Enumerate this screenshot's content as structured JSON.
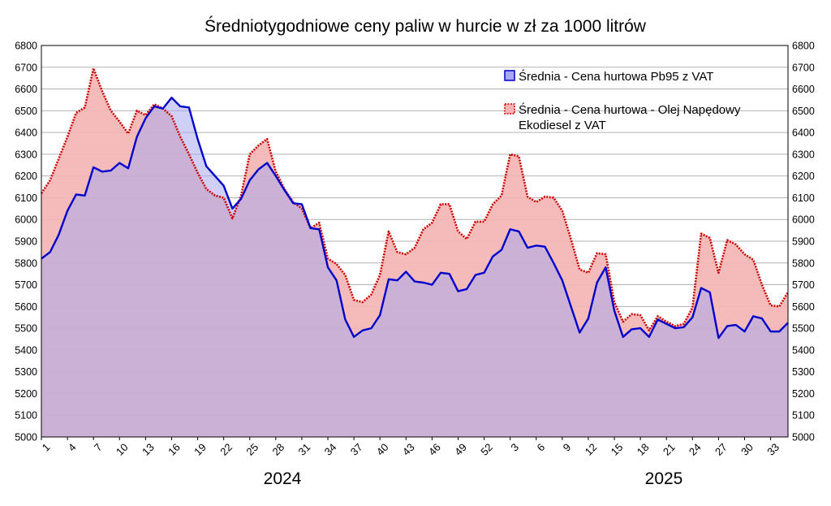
{
  "chart_data": {
    "type": "area",
    "title": "Średniotygodniowe ceny paliw w hurcie w zł za 1000 litrów",
    "ylim": [
      5000,
      6800
    ],
    "y_ticks": [
      5000,
      5100,
      5200,
      5300,
      5400,
      5500,
      5600,
      5700,
      5800,
      5900,
      6000,
      6100,
      6200,
      6300,
      6400,
      6500,
      6600,
      6700,
      6800
    ],
    "x_ticks": [
      "1",
      "4",
      "7",
      "10",
      "13",
      "16",
      "19",
      "22",
      "25",
      "28",
      "31",
      "34",
      "37",
      "40",
      "43",
      "46",
      "49",
      "52",
      "3",
      "6",
      "9",
      "12",
      "15",
      "18",
      "21",
      "24",
      "27",
      "30",
      "33"
    ],
    "year_labels": [
      "2024",
      "2025"
    ],
    "grid": true,
    "legend_position": "top-right",
    "legend": [
      {
        "name_line1": "Średnia - Cena hurtowa Pb95 z VAT",
        "name_line2": ""
      },
      {
        "name_line1": "Średnia - Cena hurtowa - Olej Napędowy",
        "name_line2": "Ekodiesel z VAT"
      }
    ],
    "series": [
      {
        "name": "Średnia - Cena hurtowa Pb95 z VAT",
        "color": "#0000cc",
        "fill": "#aaa9ee",
        "values": [
          5820,
          5850,
          5930,
          6040,
          6115,
          6110,
          6240,
          6220,
          6225,
          6260,
          6235,
          6380,
          6465,
          6520,
          6510,
          6560,
          6520,
          6515,
          6370,
          6245,
          6200,
          6155,
          6050,
          6095,
          6180,
          6230,
          6260,
          6200,
          6135,
          6075,
          6070,
          5960,
          5955,
          5780,
          5720,
          5540,
          5460,
          5490,
          5500,
          5560,
          5725,
          5720,
          5760,
          5715,
          5710,
          5700,
          5755,
          5750,
          5670,
          5680,
          5745,
          5755,
          5830,
          5860,
          5955,
          5945,
          5870,
          5880,
          5875,
          5800,
          5720,
          5600,
          5480,
          5545,
          5710,
          5780,
          5580,
          5460,
          5495,
          5500,
          5460,
          5540,
          5520,
          5500,
          5505,
          5550,
          5685,
          5665,
          5455,
          5510,
          5515,
          5485,
          5555,
          5545,
          5485,
          5485,
          5525
        ]
      },
      {
        "name": "Średnia - Cena hurtowa - Olej Napędowy Ekodiesel z VAT",
        "color": "#cc0000",
        "fill": "#f4b4b4",
        "values": [
          6120,
          6180,
          6280,
          6380,
          6490,
          6515,
          6695,
          6590,
          6500,
          6450,
          6395,
          6500,
          6480,
          6530,
          6510,
          6475,
          6380,
          6300,
          6215,
          6140,
          6110,
          6100,
          6005,
          6110,
          6300,
          6340,
          6370,
          6220,
          6140,
          6080,
          6050,
          5960,
          5985,
          5820,
          5795,
          5745,
          5630,
          5620,
          5655,
          5745,
          5945,
          5850,
          5840,
          5870,
          5955,
          5985,
          6070,
          6070,
          5945,
          5910,
          5990,
          5990,
          6070,
          6110,
          6300,
          6290,
          6105,
          6080,
          6105,
          6100,
          6040,
          5910,
          5770,
          5755,
          5845,
          5840,
          5620,
          5530,
          5565,
          5560,
          5490,
          5555,
          5530,
          5510,
          5520,
          5595,
          5935,
          5915,
          5755,
          5905,
          5885,
          5840,
          5815,
          5700,
          5605,
          5600,
          5665
        ]
      }
    ]
  }
}
